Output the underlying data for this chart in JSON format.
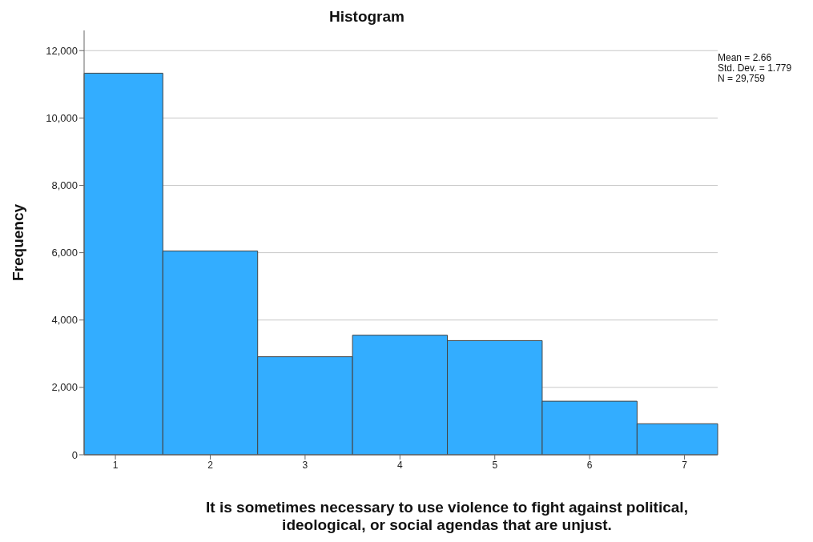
{
  "chart_data": {
    "type": "histogram",
    "title": "Histogram",
    "xlabel": "It is sometimes necessary to use violence to fight against political, ideological, or social agendas that are unjust.",
    "ylabel": "Frequency",
    "bins": [
      0.67,
      1.5,
      2.5,
      3.5,
      4.5,
      5.5,
      6.5,
      7.35
    ],
    "values": [
      11330,
      6050,
      2910,
      3550,
      3390,
      1590,
      920
    ],
    "color": "#33adff",
    "xlim": [
      0.67,
      7.35
    ],
    "xticks": [
      1,
      2,
      3,
      4,
      5,
      6,
      7
    ],
    "ylim": [
      0,
      12600
    ],
    "yticks": [
      {
        "value": 0,
        "label": "0"
      },
      {
        "value": 2000,
        "label": "2,000"
      },
      {
        "value": 4000,
        "label": "4,000"
      },
      {
        "value": 6000,
        "label": "6,000"
      },
      {
        "value": 8000,
        "label": "8,000"
      },
      {
        "value": 10000,
        "label": "10,000"
      },
      {
        "value": 12000,
        "label": "12,000"
      }
    ],
    "grid": "y",
    "annotations": [
      "Mean = 2.66",
      "Std. Dev. = 1.779",
      "N = 29,759"
    ]
  }
}
